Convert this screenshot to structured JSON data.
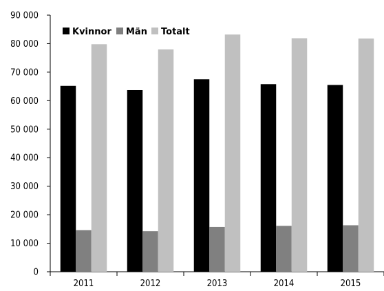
{
  "chart_data": {
    "type": "bar",
    "categories": [
      "2011",
      "2012",
      "2013",
      "2014",
      "2015"
    ],
    "series": [
      {
        "name": "Kvinnor",
        "values": [
          65200,
          63700,
          67500,
          65800,
          65500
        ],
        "color": "#000000"
      },
      {
        "name": "Män",
        "values": [
          14600,
          14200,
          15700,
          16100,
          16300
        ],
        "color": "#808080"
      },
      {
        "name": "Totalt",
        "values": [
          79800,
          78000,
          83200,
          81900,
          81800
        ],
        "color": "#c0c0c0"
      }
    ],
    "y_ticks": [
      "0",
      "10 000",
      "20 000",
      "30 000",
      "40 000",
      "50 000",
      "60 000",
      "70 000",
      "80 000",
      "90 000"
    ],
    "ylim": [
      0,
      90000
    ],
    "grid": false,
    "legend_position": "top-left"
  }
}
